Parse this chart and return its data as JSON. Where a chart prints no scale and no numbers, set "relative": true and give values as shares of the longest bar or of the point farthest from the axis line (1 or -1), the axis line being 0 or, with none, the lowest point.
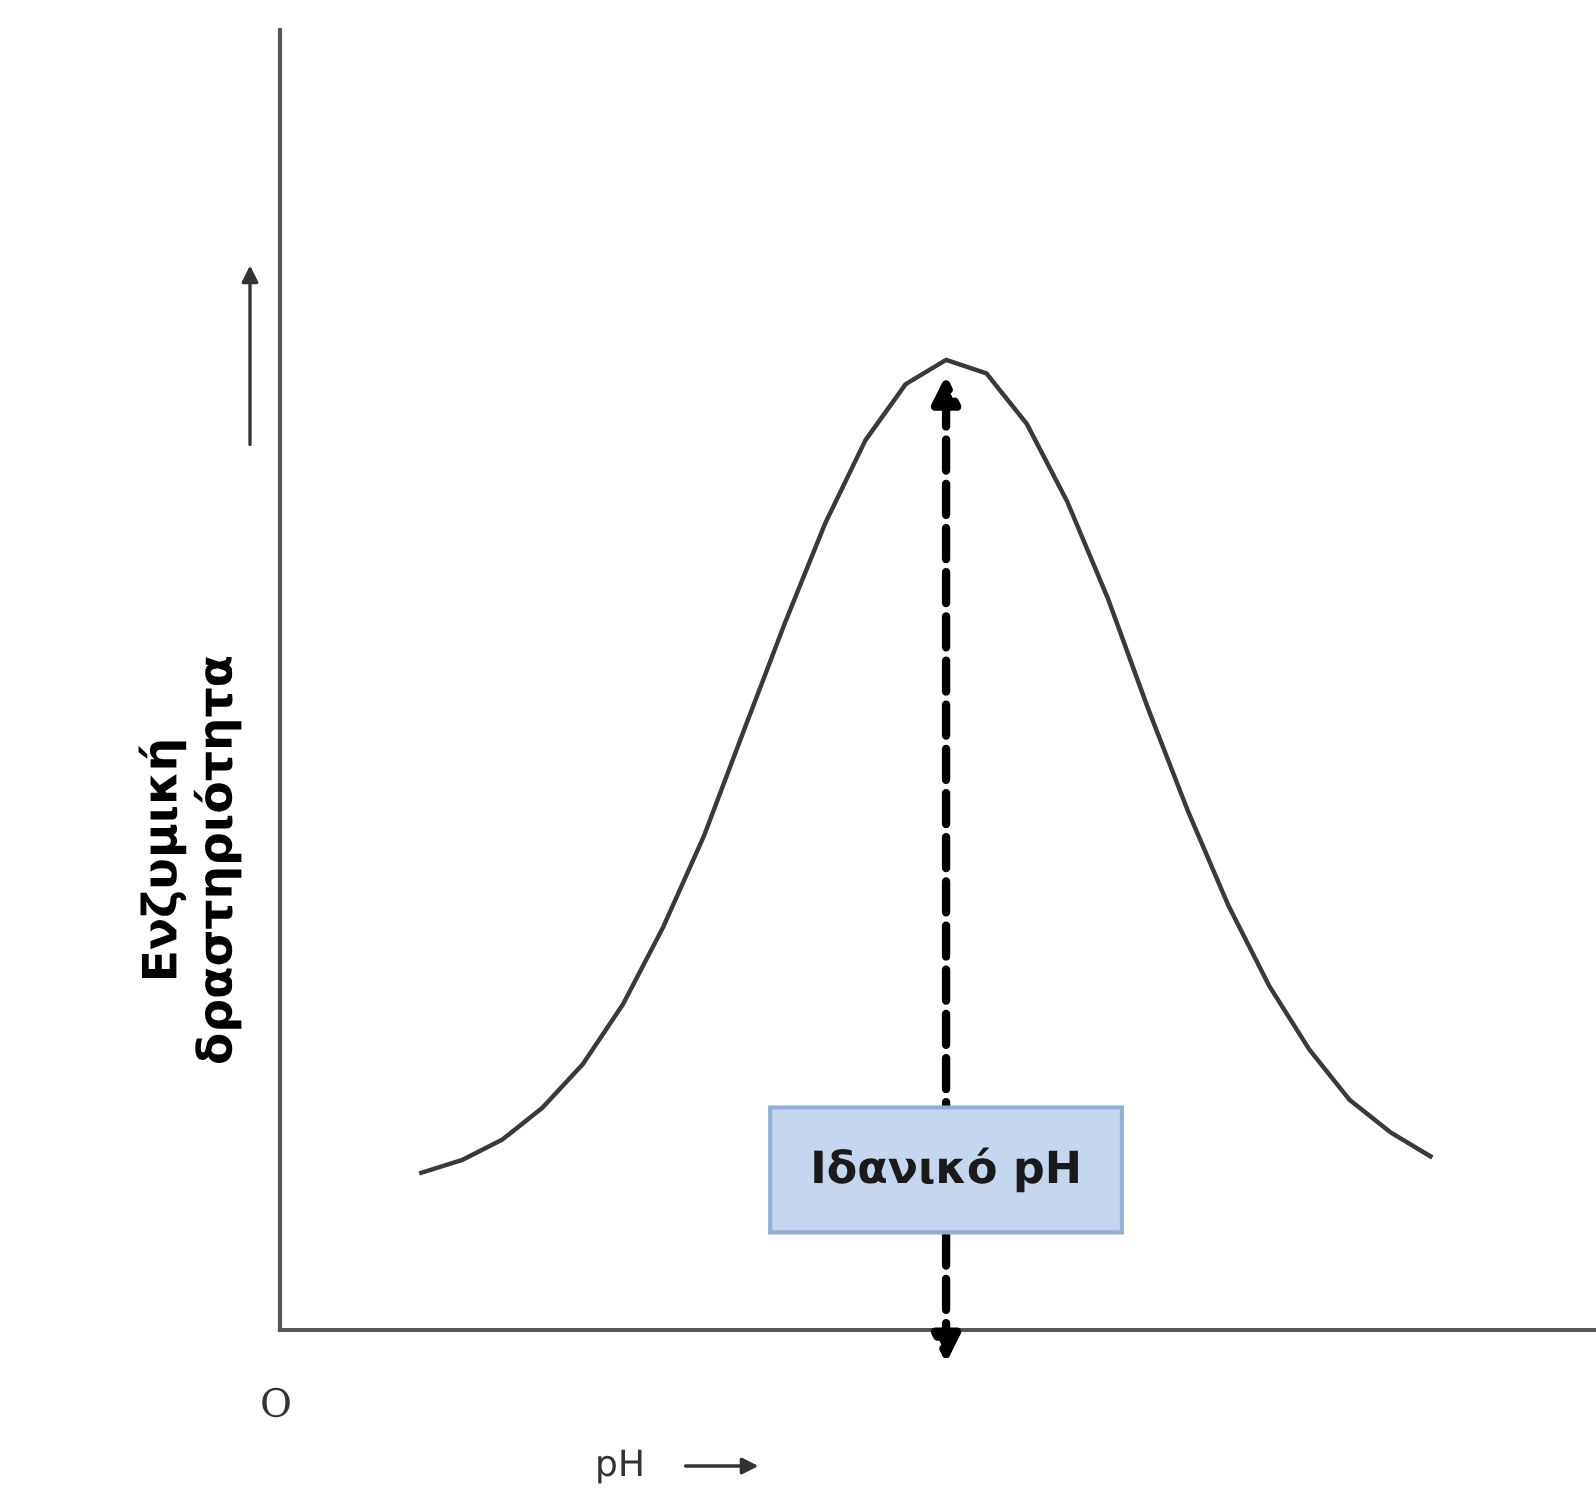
{
  "chart_data": {
    "type": "line",
    "relative": true,
    "xlabel": "pH",
    "ylabel": "Ενζυμική\nδραστηριότητα",
    "grid": false,
    "categories": [
      null,
      null,
      null,
      null,
      null,
      null,
      null,
      null,
      null,
      null,
      null,
      null,
      null,
      null,
      null,
      null,
      null,
      null,
      null,
      null,
      null,
      null,
      null,
      null,
      null,
      null
    ],
    "series": [
      {
        "color": "#3a3a3a",
        "values": [
          0.162,
          0.175,
          0.196,
          0.229,
          0.274,
          0.336,
          0.416,
          0.509,
          0.619,
          0.728,
          0.831,
          0.917,
          0.975,
          1.0,
          0.986,
          0.934,
          0.854,
          0.755,
          0.641,
          0.534,
          0.437,
          0.355,
          0.289,
          0.237,
          0.204,
          0.179
        ]
      }
    ],
    "annotations": [
      "O",
      "Ιδανικό pH"
    ]
  }
}
